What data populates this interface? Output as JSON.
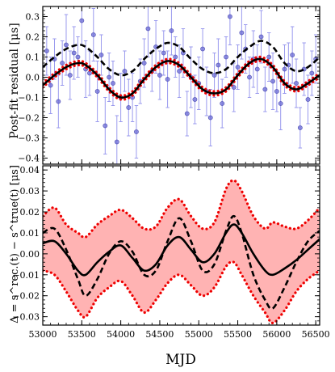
{
  "chart_data": [
    {
      "type": "line",
      "panel": "top",
      "ylabel": "Post-fit residual [μs]",
      "xlim": [
        53000,
        56550
      ],
      "ylim": [
        -0.43,
        0.35
      ],
      "yticks": [
        -0.4,
        -0.3,
        -0.2,
        -0.1,
        0.0,
        0.1,
        0.2,
        0.3
      ],
      "yticklabels": [
        "−0.4",
        "−0.3",
        "−0.2",
        "−0.1",
        "0.0",
        "0.1",
        "0.2",
        "0.3"
      ],
      "grid": false,
      "series": [
        {
          "style": "points-with-errorbars",
          "color": "#6b6bd6",
          "x": [
            53050,
            53100,
            53150,
            53200,
            53250,
            53300,
            53350,
            53400,
            53450,
            53500,
            53550,
            53600,
            53650,
            53700,
            53750,
            53800,
            53850,
            53900,
            53950,
            54000,
            54050,
            54100,
            54150,
            54200,
            54250,
            54300,
            54350,
            54400,
            54450,
            54500,
            54550,
            54600,
            54650,
            54700,
            54750,
            54800,
            54850,
            54900,
            54950,
            55000,
            55050,
            55100,
            55150,
            55200,
            55250,
            55300,
            55350,
            55400,
            55450,
            55500,
            55550,
            55600,
            55650,
            55700,
            55750,
            55800,
            55850,
            55900,
            55950,
            56000,
            56050,
            56100,
            56150,
            56200,
            56250,
            56300,
            56350,
            56400,
            56450,
            56500
          ],
          "y": [
            0.13,
            -0.04,
            0.09,
            -0.12,
            0.07,
            0.16,
            0.01,
            0.12,
            0.1,
            0.28,
            0.04,
            0.02,
            0.21,
            -0.07,
            0.11,
            -0.24,
            0.0,
            -0.03,
            -0.32,
            -0.1,
            0.03,
            -0.15,
            -0.1,
            -0.27,
            -0.02,
            0.07,
            0.24,
            0.03,
            0.15,
            0.01,
            0.12,
            -0.01,
            0.23,
            0.1,
            0.03,
            0.12,
            -0.18,
            0.0,
            -0.11,
            -0.03,
            0.14,
            -0.07,
            -0.2,
            0.01,
            0.06,
            -0.13,
            0.1,
            0.3,
            -0.05,
            0.05,
            0.22,
            0.14,
            0.0,
            0.09,
            0.04,
            0.2,
            -0.06,
            0.1,
            -0.02,
            -0.07,
            -0.13,
            0.04,
            0.06,
            0.11,
            -0.03,
            -0.25,
            0.04,
            -0.11,
            0.02,
            0.09
          ],
          "err": [
            0.12,
            0.14,
            0.1,
            0.13,
            0.11,
            0.15,
            0.12,
            0.13,
            0.1,
            0.12,
            0.14,
            0.11,
            0.13,
            0.15,
            0.1,
            0.14,
            0.12,
            0.11,
            0.13,
            0.12,
            0.1,
            0.14,
            0.12,
            0.13,
            0.11,
            0.12,
            0.14,
            0.1,
            0.13,
            0.12,
            0.11,
            0.14,
            0.12,
            0.1,
            0.13,
            0.12,
            0.11,
            0.15,
            0.12,
            0.13,
            0.1,
            0.12,
            0.14,
            0.11,
            0.13,
            0.12,
            0.1,
            0.14,
            0.12,
            0.11,
            0.13,
            0.12,
            0.1,
            0.14,
            0.12,
            0.13,
            0.11,
            0.12,
            0.14,
            0.1,
            0.13,
            0.12,
            0.11,
            0.14,
            0.12,
            0.1,
            0.13,
            0.12,
            0.11,
            0.12
          ]
        },
        {
          "style": "dotted-band",
          "color": "#ee0000",
          "x": [
            53000,
            53150,
            53300,
            53450,
            53550,
            53700,
            53850,
            54000,
            54150,
            54300,
            54450,
            54600,
            54750,
            54900,
            55050,
            55200,
            55350,
            55500,
            55650,
            55800,
            55950,
            56100,
            56250,
            56400,
            56550
          ],
          "upper": [
            -0.03,
            0.02,
            0.06,
            0.08,
            0.07,
            0.02,
            -0.05,
            -0.09,
            -0.07,
            0.0,
            0.06,
            0.09,
            0.07,
            0.01,
            -0.05,
            -0.07,
            -0.05,
            0.02,
            0.08,
            0.1,
            0.06,
            -0.02,
            -0.05,
            -0.02,
            0.02
          ],
          "lower": [
            -0.05,
            0.0,
            0.04,
            0.06,
            0.05,
            0.0,
            -0.07,
            -0.11,
            -0.09,
            -0.02,
            0.04,
            0.07,
            0.05,
            -0.01,
            -0.07,
            -0.09,
            -0.07,
            0.0,
            0.06,
            0.08,
            0.04,
            -0.04,
            -0.07,
            -0.04,
            0.0
          ]
        },
        {
          "style": "solid",
          "color": "#000000",
          "x": [
            53000,
            53150,
            53300,
            53450,
            53550,
            53700,
            53850,
            54000,
            54150,
            54300,
            54450,
            54600,
            54750,
            54900,
            55050,
            55200,
            55350,
            55500,
            55650,
            55800,
            55950,
            56100,
            56250,
            56400,
            56550
          ],
          "y": [
            -0.04,
            0.01,
            0.05,
            0.07,
            0.06,
            0.01,
            -0.06,
            -0.1,
            -0.08,
            -0.01,
            0.05,
            0.08,
            0.06,
            0.0,
            -0.06,
            -0.08,
            -0.06,
            0.01,
            0.07,
            0.09,
            0.05,
            -0.03,
            -0.06,
            -0.03,
            0.01
          ]
        },
        {
          "style": "dashed",
          "color": "#000000",
          "x": [
            53000,
            53150,
            53300,
            53450,
            53550,
            53700,
            53850,
            54000,
            54150,
            54300,
            54450,
            54600,
            54750,
            54900,
            55050,
            55200,
            55350,
            55500,
            55650,
            55800,
            55950,
            56100,
            56250,
            56400,
            56550
          ],
          "y": [
            0.05,
            0.1,
            0.14,
            0.16,
            0.15,
            0.1,
            0.04,
            0.01,
            0.03,
            0.09,
            0.14,
            0.17,
            0.15,
            0.09,
            0.04,
            0.02,
            0.04,
            0.1,
            0.15,
            0.18,
            0.15,
            0.07,
            0.03,
            0.05,
            0.1
          ]
        }
      ]
    },
    {
      "type": "line",
      "panel": "bottom",
      "ylabel": "Δ = s^rec.(t) − s^true(t) [μs]",
      "xlabel": "MJD",
      "xlim": [
        53000,
        56550
      ],
      "ylim": [
        -0.034,
        0.042
      ],
      "yticks": [
        -0.03,
        -0.02,
        -0.01,
        0.0,
        0.01,
        0.02,
        0.03,
        0.04
      ],
      "yticklabels": [
        "−0.03",
        "−0.02",
        "−0.01",
        "0.00",
        "0.01",
        "0.02",
        "0.03",
        "0.04"
      ],
      "xticks": [
        53000,
        53500,
        54000,
        54500,
        55000,
        55500,
        56000,
        56500
      ],
      "xticklabels": [
        "53000",
        "53500",
        "54000",
        "54500",
        "55000",
        "55500",
        "56000",
        "56500"
      ],
      "grid": false,
      "series": [
        {
          "style": "dotted-band",
          "color": "#ee0000",
          "fill": "#ffb3b3",
          "x": [
            53000,
            53150,
            53300,
            53450,
            53550,
            53700,
            53850,
            54000,
            54150,
            54300,
            54450,
            54600,
            54750,
            54900,
            55050,
            55200,
            55350,
            55450,
            55550,
            55700,
            55850,
            55950,
            56100,
            56250,
            56400,
            56550
          ],
          "upper": [
            0.018,
            0.022,
            0.014,
            0.01,
            0.008,
            0.014,
            0.018,
            0.021,
            0.017,
            0.012,
            0.013,
            0.022,
            0.026,
            0.018,
            0.012,
            0.015,
            0.031,
            0.035,
            0.03,
            0.018,
            0.012,
            0.015,
            0.013,
            0.012,
            0.016,
            0.022
          ],
          "lower": [
            -0.008,
            -0.01,
            -0.018,
            -0.027,
            -0.03,
            -0.021,
            -0.016,
            -0.013,
            -0.02,
            -0.028,
            -0.022,
            -0.014,
            -0.01,
            -0.015,
            -0.02,
            -0.016,
            -0.006,
            -0.004,
            -0.01,
            -0.02,
            -0.028,
            -0.033,
            -0.027,
            -0.018,
            -0.012,
            -0.008
          ]
        },
        {
          "style": "solid",
          "color": "#000000",
          "x": [
            53000,
            53150,
            53300,
            53450,
            53550,
            53700,
            53850,
            54000,
            54150,
            54300,
            54450,
            54600,
            54750,
            54900,
            55050,
            55200,
            55350,
            55450,
            55550,
            55700,
            55850,
            55950,
            56100,
            56250,
            56400,
            56550
          ],
          "y": [
            0.005,
            0.006,
            0.0,
            -0.008,
            -0.01,
            -0.004,
            0.001,
            0.004,
            -0.002,
            -0.008,
            -0.005,
            0.004,
            0.008,
            0.002,
            -0.004,
            0.0,
            0.01,
            0.014,
            0.01,
            0.0,
            -0.008,
            -0.01,
            -0.007,
            -0.003,
            0.002,
            0.007
          ]
        },
        {
          "style": "dashed",
          "color": "#000000",
          "x": [
            53000,
            53150,
            53300,
            53450,
            53550,
            53700,
            53850,
            54000,
            54150,
            54300,
            54450,
            54600,
            54750,
            54900,
            55050,
            55200,
            55350,
            55450,
            55550,
            55700,
            55850,
            55950,
            56100,
            56250,
            56400,
            56550
          ],
          "y": [
            0.01,
            0.012,
            0.002,
            -0.012,
            -0.02,
            -0.012,
            0.0,
            0.006,
            0.001,
            -0.01,
            -0.008,
            0.006,
            0.017,
            0.006,
            -0.008,
            -0.005,
            0.011,
            0.018,
            0.01,
            -0.01,
            -0.022,
            -0.026,
            -0.016,
            -0.004,
            0.006,
            0.011
          ]
        }
      ]
    }
  ]
}
